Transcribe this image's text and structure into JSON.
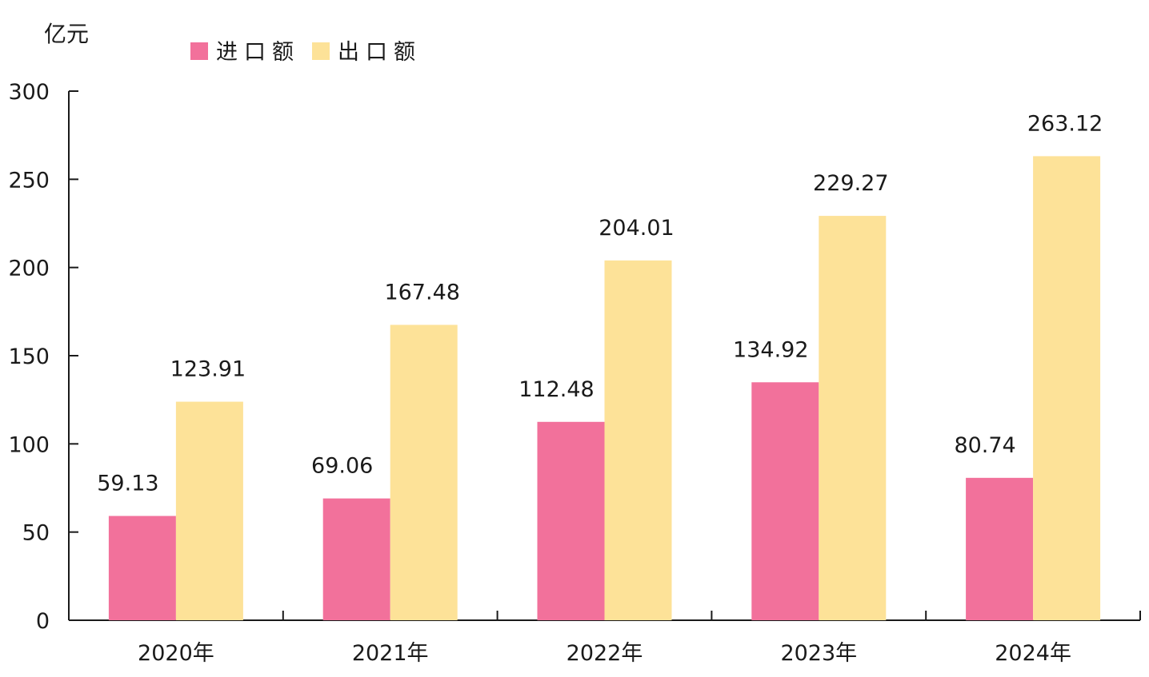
{
  "chart_data": {
    "type": "bar",
    "ylabel": "亿元",
    "categories": [
      "2020年",
      "2021年",
      "2022年",
      "2023年",
      "2024年"
    ],
    "ylim": [
      0,
      300
    ],
    "yticks": [
      0,
      50,
      100,
      150,
      200,
      250,
      300
    ],
    "legend_position": "top-left",
    "grid": false,
    "series": [
      {
        "name": "进口额",
        "color": "#f2719b",
        "values": [
          59.13,
          69.06,
          112.48,
          134.92,
          80.74
        ],
        "labels": [
          "59.13",
          "69.06",
          "112.48",
          "134.92",
          "80.74"
        ]
      },
      {
        "name": "出口额",
        "color": "#fde298",
        "values": [
          123.91,
          167.48,
          204.01,
          229.27,
          263.12
        ],
        "labels": [
          "123.91",
          "167.48",
          "204.01",
          "229.27",
          "263.12"
        ]
      }
    ]
  }
}
